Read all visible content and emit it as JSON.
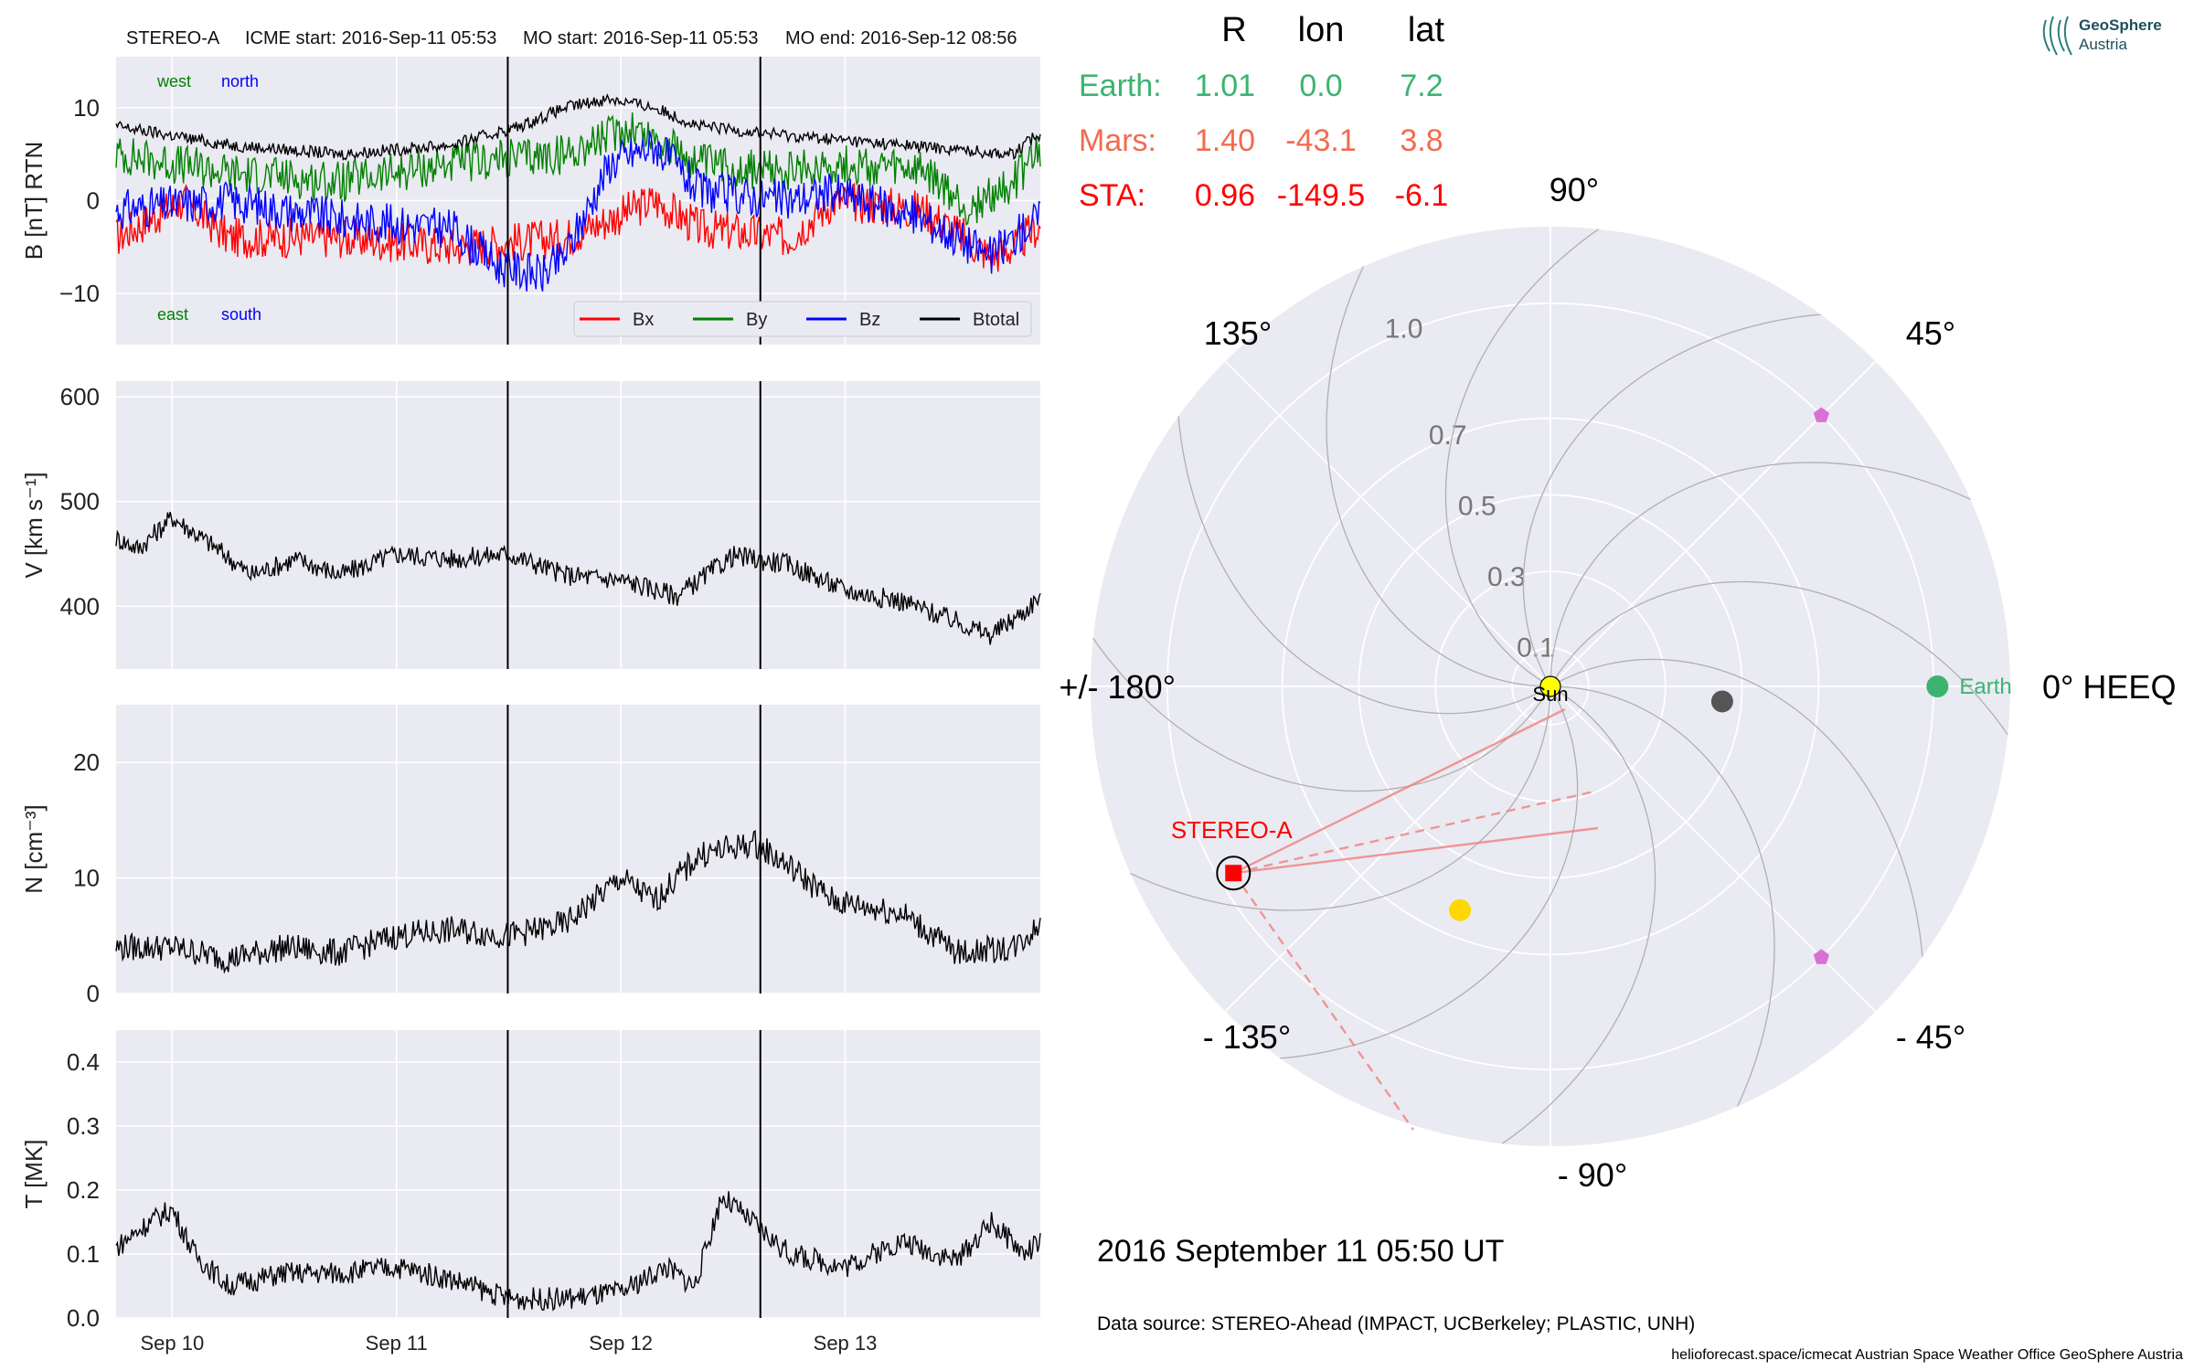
{
  "header": {
    "spacecraft": "STEREO-A",
    "icme_start": "ICME start: 2016-Sep-11 05:53",
    "mo_start": "MO start: 2016-Sep-11 05:53",
    "mo_end": "MO end: 2016-Sep-12 08:56"
  },
  "logo": {
    "line1": "GeoSphere",
    "line2": "Austria"
  },
  "positions": {
    "headers": [
      "R",
      "lon",
      "lat"
    ],
    "rows": [
      {
        "name": "Earth:",
        "R": "1.01",
        "lon": "0.0",
        "lat": "7.2",
        "color": "#3cb371"
      },
      {
        "name": "Mars:",
        "R": "1.40",
        "lon": "-43.1",
        "lat": "3.8",
        "color": "#f26b4f"
      },
      {
        "name": "STA:",
        "R": "0.96",
        "lon": "-149.5",
        "lat": "-6.1",
        "color": "#ff0000"
      }
    ]
  },
  "timestamp": "2016 September 11  05:50 UT",
  "data_source": "Data source: STEREO-Ahead (IMPACT, UCBerkeley; PLASTIC, UNH)",
  "footer": "helioforecast.space/icmecat   Austrian Space Weather Office   GeoSphere Austria",
  "chart_data": [
    {
      "type": "line",
      "ylabel": "B [nT] RTN",
      "ylim": [
        -15.5,
        15.5
      ],
      "yticks": [
        "10",
        "0",
        "−10"
      ],
      "ytick_values": [
        10,
        0,
        -10
      ],
      "corner_labels": {
        "west": "west",
        "north": "north",
        "east": "east",
        "south": "south"
      },
      "series": [
        {
          "name": "Bx",
          "color": "#ff0000",
          "x_days": [
            0,
            0.3,
            0.5,
            0.7,
            1.0,
            1.5,
            2.0,
            2.4,
            2.6,
            3.0,
            3.2,
            3.6,
            3.9,
            4.0,
            4.1
          ],
          "values": [
            -4,
            0,
            -4,
            -4,
            -4,
            -5,
            -4,
            0,
            -3,
            -4,
            0,
            -1,
            -6,
            -5,
            -3
          ]
        },
        {
          "name": "By",
          "color": "#008000",
          "x_days": [
            0,
            0.5,
            1.0,
            1.5,
            2.0,
            2.3,
            2.6,
            3.0,
            3.2,
            3.6,
            3.8,
            4.0,
            4.1
          ],
          "values": [
            5,
            3,
            2,
            4,
            5,
            8,
            4,
            3,
            4,
            3,
            -1,
            2,
            5
          ]
        },
        {
          "name": "Bz",
          "color": "#0000ff",
          "x_days": [
            0,
            0.5,
            1.0,
            1.5,
            1.7,
            1.9,
            2.0,
            2.2,
            2.4,
            2.6,
            3.0,
            3.2,
            3.6,
            3.9,
            4.0,
            4.1
          ],
          "values": [
            -1,
            0,
            -2,
            -3,
            -7,
            -8,
            -6,
            4,
            6,
            1,
            0,
            1,
            -2,
            -6,
            -4,
            -2
          ]
        },
        {
          "name": "Btotal",
          "color": "#000000",
          "x_days": [
            0,
            0.5,
            1.0,
            1.5,
            1.8,
            2.0,
            2.2,
            2.4,
            2.6,
            3.0,
            3.5,
            4.0,
            4.1
          ],
          "values": [
            8,
            6,
            5,
            6,
            8,
            10,
            11,
            10,
            8,
            7,
            6,
            5,
            7
          ]
        }
      ],
      "legend_position": "lower-right"
    },
    {
      "type": "line",
      "ylabel": "V [km s⁻¹]",
      "ylim": [
        340,
        615
      ],
      "yticks": [
        "600",
        "500",
        "400"
      ],
      "ytick_values": [
        600,
        500,
        400
      ],
      "series": [
        {
          "name": "",
          "color": "#000000",
          "x_days": [
            0,
            0.1,
            0.25,
            0.35,
            0.45,
            0.6,
            0.8,
            1.0,
            1.25,
            1.5,
            1.75,
            2.0,
            2.25,
            2.5,
            2.75,
            3.0,
            3.25,
            3.5,
            3.75,
            3.9,
            4.05,
            4.12
          ],
          "values": [
            465,
            455,
            485,
            470,
            455,
            430,
            445,
            430,
            450,
            445,
            450,
            430,
            425,
            410,
            448,
            440,
            415,
            405,
            385,
            372,
            395,
            410
          ]
        }
      ]
    },
    {
      "type": "line",
      "ylabel": "N [cm⁻³]",
      "ylim": [
        0,
        25
      ],
      "yticks": [
        "20",
        "10",
        "0"
      ],
      "ytick_values": [
        20,
        10,
        0
      ],
      "series": [
        {
          "name": "",
          "color": "#000000",
          "x_days": [
            0,
            0.25,
            0.5,
            0.75,
            1.0,
            1.25,
            1.5,
            1.75,
            2.0,
            2.25,
            2.4,
            2.6,
            2.85,
            3.0,
            3.2,
            3.5,
            3.75,
            4.0,
            4.12
          ],
          "values": [
            4,
            4,
            3,
            4,
            3.5,
            5,
            5.5,
            5,
            6,
            10,
            8,
            12,
            13,
            11,
            8,
            7,
            3.5,
            4,
            6
          ]
        }
      ]
    },
    {
      "type": "line",
      "ylabel": "T [MK]",
      "ylim": [
        0,
        0.45
      ],
      "yticks": [
        "0.4",
        "0.3",
        "0.2",
        "0.1",
        "0.0"
      ],
      "ytick_values": [
        0.4,
        0.3,
        0.2,
        0.1,
        0.0
      ],
      "series": [
        {
          "name": "",
          "color": "#000000",
          "x_days": [
            0,
            0.15,
            0.25,
            0.35,
            0.5,
            0.75,
            1.0,
            1.25,
            1.5,
            1.75,
            2.0,
            2.25,
            2.45,
            2.58,
            2.7,
            3.0,
            3.25,
            3.5,
            3.75,
            3.9,
            4.05,
            4.12
          ],
          "values": [
            0.11,
            0.15,
            0.17,
            0.1,
            0.05,
            0.07,
            0.07,
            0.08,
            0.06,
            0.03,
            0.03,
            0.04,
            0.08,
            0.05,
            0.19,
            0.1,
            0.08,
            0.12,
            0.09,
            0.15,
            0.1,
            0.12
          ]
        }
      ]
    },
    {
      "type": "scatter",
      "projection": "polar",
      "angle_ticks": [
        "90°",
        "45°",
        "0° HEEQ",
        "- 45°",
        "- 90°",
        "- 135°",
        "+/- 180°",
        "135°"
      ],
      "angle_tick_values": [
        90,
        45,
        0,
        -45,
        -90,
        -135,
        180,
        135
      ],
      "radial_ticks": [
        "0.1",
        "0.3",
        "0.5",
        "0.7",
        "1.0"
      ],
      "radial_tick_values": [
        0.1,
        0.3,
        0.5,
        0.7,
        1.0
      ],
      "rlim": [
        0,
        1.2
      ],
      "bodies": [
        {
          "name": "Sun",
          "r": 0.0,
          "lon": 0.0,
          "color": "#ffff00"
        },
        {
          "name": "Earth",
          "r": 1.01,
          "lon": 0.0,
          "color": "#3cb371"
        },
        {
          "name": "STEREO-A",
          "r": 0.96,
          "lon": -149.5,
          "color": "#ff0000"
        }
      ],
      "unlabeled_markers": [
        {
          "r": 0.45,
          "lon": -5.0,
          "color": "#555555"
        },
        {
          "r": 0.63,
          "lon": -112.0,
          "color": "#ffd700"
        },
        {
          "r": 1.0,
          "lon": 45.0,
          "color": "#da70d6"
        },
        {
          "r": 1.0,
          "lon": -45.0,
          "color": "#da70d6"
        }
      ]
    }
  ],
  "time_axis": {
    "ticks": [
      "Sep 10",
      "Sep 11",
      "Sep 12",
      "Sep 13"
    ],
    "tick_days": [
      0.25,
      1.25,
      2.25,
      3.25
    ],
    "range_days": [
      0,
      4.12
    ],
    "event_lines_days": [
      1.746,
      2.872
    ]
  }
}
